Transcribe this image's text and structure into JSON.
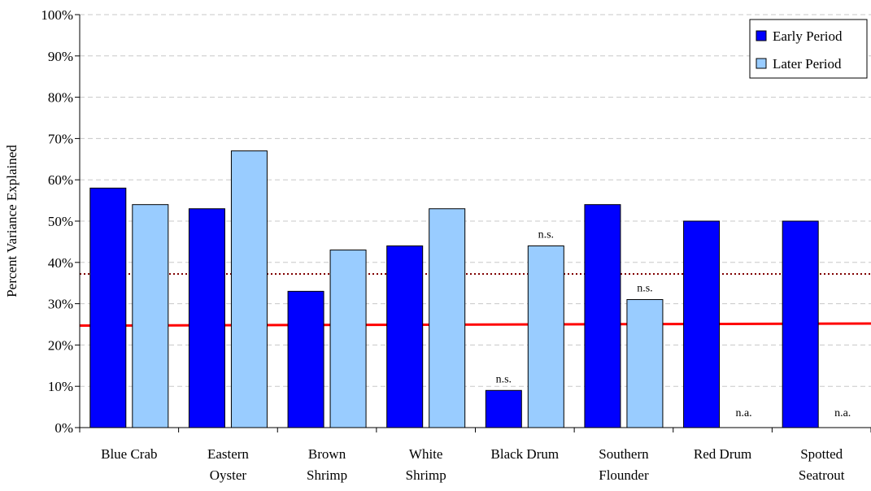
{
  "chart_data": {
    "type": "bar",
    "ylabel": "Percent Variance Explained",
    "ylim": [
      0,
      100
    ],
    "y_ticks": [
      "0%",
      "10%",
      "20%",
      "30%",
      "40%",
      "50%",
      "60%",
      "70%",
      "80%",
      "90%",
      "100%"
    ],
    "grid": "horizontal dashed",
    "legend_position": "top-right",
    "categories": [
      [
        "Blue Crab"
      ],
      [
        "Eastern",
        "Oyster"
      ],
      [
        "Brown",
        "Shrimp"
      ],
      [
        "White",
        "Shrimp"
      ],
      [
        "Black Drum"
      ],
      [
        "Southern",
        "Flounder"
      ],
      [
        "Red Drum"
      ],
      [
        "Spotted",
        "Seatrout"
      ]
    ],
    "series": [
      {
        "name": "Early Period",
        "color": "#0000ff",
        "values": [
          58,
          53,
          33,
          44,
          9,
          54,
          50,
          50
        ]
      },
      {
        "name": "Later Period",
        "color": "#99ccff",
        "values": [
          54,
          67,
          43,
          53,
          44,
          31,
          null,
          null
        ]
      }
    ],
    "annotations": [
      {
        "category_index": 4,
        "series_index": 0,
        "text": "n.s."
      },
      {
        "category_index": 4,
        "series_index": 1,
        "text": "n.s."
      },
      {
        "category_index": 5,
        "series_index": 1,
        "text": "n.s."
      },
      {
        "category_index": 6,
        "series_index": 1,
        "text": "n.a."
      },
      {
        "category_index": 7,
        "series_index": 1,
        "text": "n.a."
      }
    ],
    "reference_lines": [
      {
        "style": "solid",
        "color": "#ff0000",
        "y_start": 24.7,
        "y_end": 25.2
      },
      {
        "style": "dotted",
        "color": "#800000",
        "y_start": 37.2,
        "y_end": 37.2
      }
    ]
  }
}
